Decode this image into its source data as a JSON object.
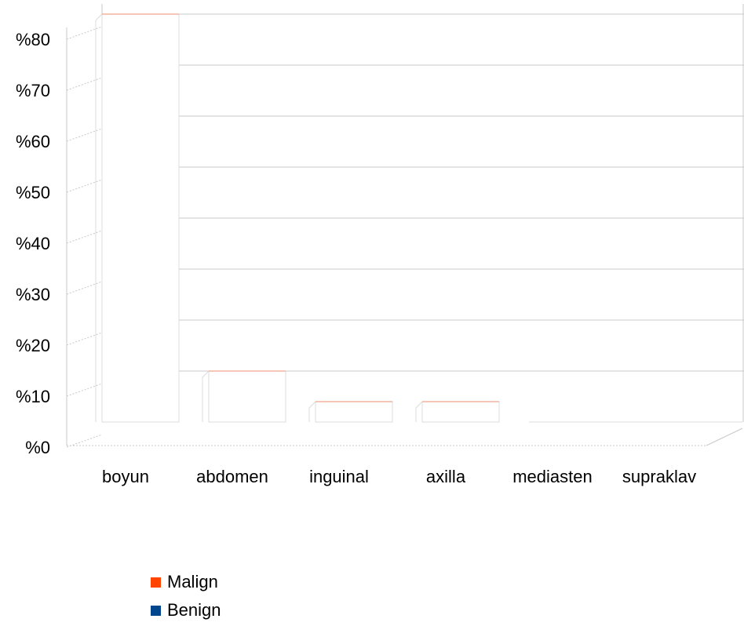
{
  "chart_data": {
    "type": "bar",
    "categories": [
      "boyun",
      "abdomen",
      "inguinal",
      "axilla",
      "mediasten",
      "supraklav"
    ],
    "series": [
      {
        "name": "Malign",
        "color": "#ff4500",
        "values": [
          80,
          10,
          4,
          4,
          0,
          0
        ]
      },
      {
        "name": "Benign",
        "color": "#00468c",
        "values": [
          0,
          0,
          0,
          0,
          0,
          0
        ]
      }
    ],
    "yticks": [
      "%0",
      "%10",
      "%20",
      "%30",
      "%40",
      "%50",
      "%60",
      "%70",
      "%80"
    ],
    "ylim": [
      0,
      80
    ],
    "grid": true,
    "legend_position": "bottom-left"
  }
}
